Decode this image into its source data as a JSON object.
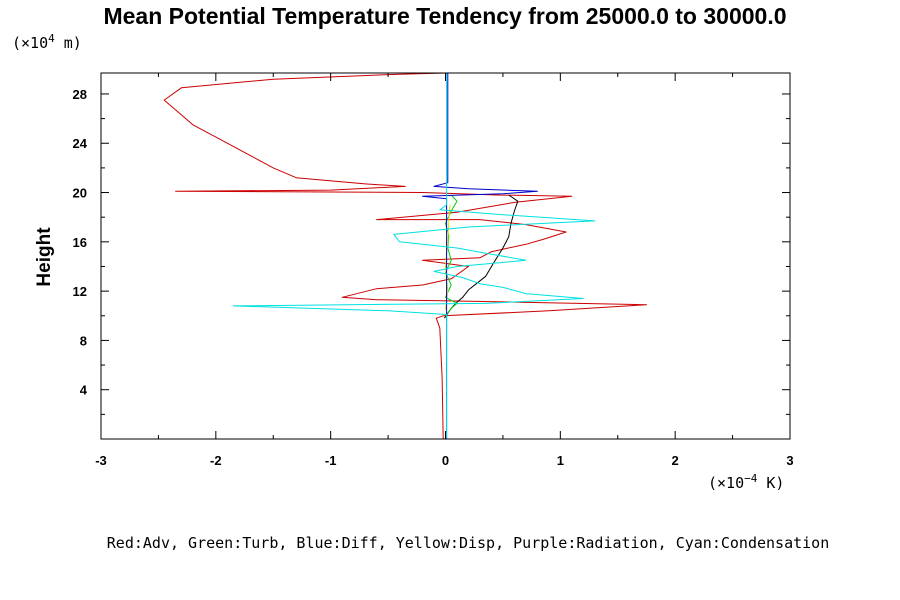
{
  "chart_data": {
    "type": "line",
    "title": "Mean Potential Temperature Tendency from 25000.0 to 30000.0",
    "ylabel": "Height",
    "y_unit_prefix": "(×10",
    "y_unit_exp": "4",
    "y_unit_suffix": " m)",
    "x_unit_prefix": "(×10",
    "x_unit_exp": "−4",
    "x_unit_suffix": " K)",
    "legend_text": "Red:Adv, Green:Turb, Blue:Diff, Yellow:Disp, Purple:Radiation, Cyan:Condensation",
    "xlim": [
      -3,
      3
    ],
    "ylim": [
      0,
      29.7
    ],
    "x_ticks": [
      "-3",
      "-2",
      "-1",
      "0",
      "1",
      "2",
      "3"
    ],
    "y_ticks": [
      "4",
      "8",
      "12",
      "16",
      "20",
      "24",
      "28"
    ],
    "series": [
      {
        "color": "#cc0000",
        "points": [
          [
            -0.02,
            0
          ],
          [
            -0.03,
            5
          ],
          [
            -0.05,
            9
          ],
          [
            -0.08,
            9.8
          ],
          [
            -0.02,
            10
          ],
          [
            0.9,
            10.4
          ],
          [
            1.75,
            10.9
          ],
          [
            0.1,
            11.2
          ],
          [
            -0.6,
            11.3
          ],
          [
            -0.9,
            11.5
          ],
          [
            -0.6,
            12.2
          ],
          [
            -0.2,
            12.5
          ],
          [
            0.05,
            13
          ],
          [
            0.2,
            14
          ],
          [
            -0.2,
            14.5
          ],
          [
            0.3,
            14.7
          ],
          [
            0.4,
            15.2
          ],
          [
            0.7,
            15.8
          ],
          [
            0.85,
            16.2
          ],
          [
            1.05,
            16.8
          ],
          [
            0.7,
            17.4
          ],
          [
            0.3,
            17.8
          ],
          [
            -0.6,
            17.8
          ],
          [
            0.1,
            18.4
          ],
          [
            0.6,
            19.2
          ],
          [
            1.1,
            19.7
          ],
          [
            0.45,
            19.8
          ],
          [
            -0.2,
            20
          ],
          [
            -2.35,
            20.1
          ],
          [
            -1.0,
            20.2
          ],
          [
            -0.35,
            20.5
          ],
          [
            -0.7,
            20.7
          ],
          [
            -1.3,
            21.2
          ],
          [
            -1.5,
            22
          ],
          [
            -1.9,
            24
          ],
          [
            -2.2,
            25.5
          ],
          [
            -2.45,
            27.5
          ],
          [
            -2.3,
            28.5
          ],
          [
            -1.5,
            29.2
          ],
          [
            -0.4,
            29.6
          ],
          [
            0,
            29.7
          ]
        ]
      },
      {
        "color": "#000000",
        "points": [
          [
            -0.01,
            9.8
          ],
          [
            0.05,
            10.6
          ],
          [
            0.1,
            11.1
          ],
          [
            0.15,
            11.5
          ],
          [
            0.2,
            12.1
          ],
          [
            0.35,
            13.2
          ],
          [
            0.42,
            14.3
          ],
          [
            0.5,
            15.5
          ],
          [
            0.55,
            16.4
          ],
          [
            0.57,
            17.5
          ],
          [
            0.6,
            18.5
          ],
          [
            0.63,
            19.3
          ],
          [
            0.55,
            19.8
          ]
        ]
      },
      {
        "color": "#00d000",
        "points": [
          [
            0,
            10
          ],
          [
            0.05,
            10.6
          ],
          [
            0.1,
            11
          ],
          [
            0.0,
            11.5
          ],
          [
            0.05,
            12.5
          ],
          [
            0.0,
            13.5
          ],
          [
            0.05,
            14.5
          ],
          [
            0.02,
            15.5
          ],
          [
            0.03,
            16.5
          ],
          [
            0.0,
            17.5
          ],
          [
            0.05,
            18.5
          ],
          [
            0.1,
            19.3
          ],
          [
            0.05,
            19.8
          ]
        ]
      },
      {
        "color": "#e0e000",
        "points": [
          [
            0,
            10.5
          ],
          [
            0.02,
            12
          ],
          [
            0.0,
            14
          ],
          [
            0.02,
            16
          ],
          [
            0.03,
            18
          ],
          [
            0.04,
            19
          ]
        ]
      },
      {
        "color": "#0000cc",
        "points": [
          [
            0.01,
            0
          ],
          [
            0.01,
            19.5
          ],
          [
            -0.2,
            19.7
          ],
          [
            0.5,
            19.9
          ],
          [
            0.8,
            20.1
          ],
          [
            0.2,
            20.3
          ],
          [
            -0.1,
            20.5
          ],
          [
            0.02,
            20.8
          ],
          [
            0.02,
            29.7
          ]
        ]
      },
      {
        "color": "#00e0e0",
        "points": [
          [
            0.01,
            0
          ],
          [
            0.01,
            10.1
          ],
          [
            -0.5,
            10.4
          ],
          [
            -1.85,
            10.8
          ],
          [
            0.35,
            11.0
          ],
          [
            1.2,
            11.4
          ],
          [
            0.7,
            11.8
          ],
          [
            0.5,
            12.3
          ],
          [
            0.3,
            12.6
          ],
          [
            0.15,
            13.1
          ],
          [
            -0.1,
            13.6
          ],
          [
            0.1,
            14.0
          ],
          [
            0.7,
            14.5
          ],
          [
            0.4,
            15.0
          ],
          [
            0.1,
            15.5
          ],
          [
            -0.4,
            16.0
          ],
          [
            -0.45,
            16.6
          ],
          [
            0.2,
            17.2
          ],
          [
            1.3,
            17.7
          ],
          [
            0.5,
            18.2
          ],
          [
            -0.05,
            18.6
          ],
          [
            0.01,
            19.0
          ],
          [
            0.01,
            29.7
          ]
        ]
      }
    ]
  }
}
